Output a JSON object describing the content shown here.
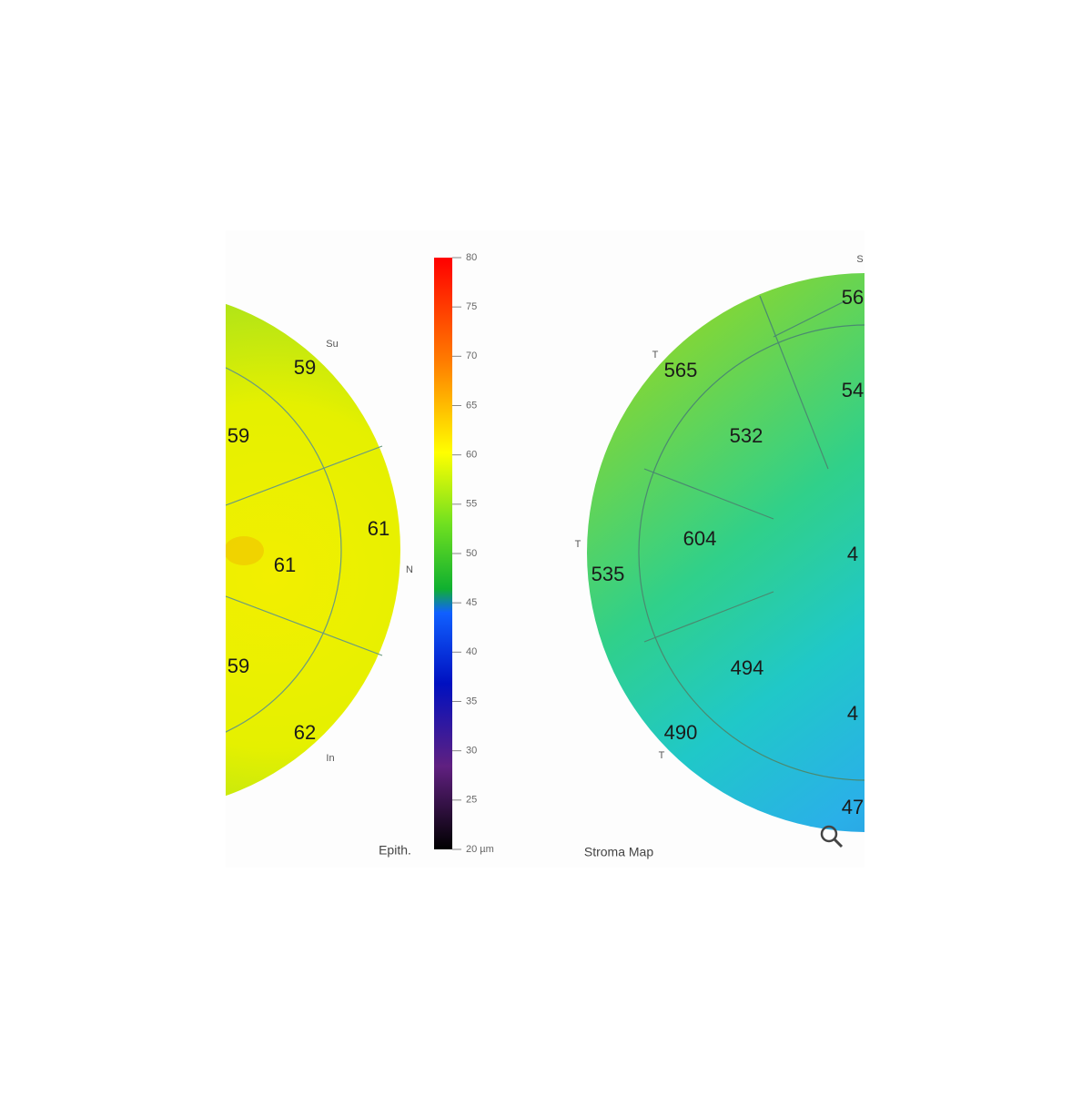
{
  "left_map": {
    "labels": [
      "59",
      "59",
      "61",
      "61",
      "59",
      "62"
    ],
    "orientation": [
      "Su",
      "N",
      "In"
    ],
    "caption": "Epith."
  },
  "colorbar": {
    "ticks": [
      80,
      75,
      70,
      65,
      60,
      55,
      50,
      45,
      40,
      35,
      30,
      25,
      {
        "value": 20,
        "label": "20 µm"
      }
    ]
  },
  "right_map": {
    "labels": [
      "565",
      "532",
      "604",
      "535",
      "494",
      "490",
      "56",
      "54",
      "4",
      "4",
      "47"
    ],
    "orientation": [
      "S",
      "T",
      "T",
      "T"
    ],
    "caption": "Stroma Map"
  }
}
